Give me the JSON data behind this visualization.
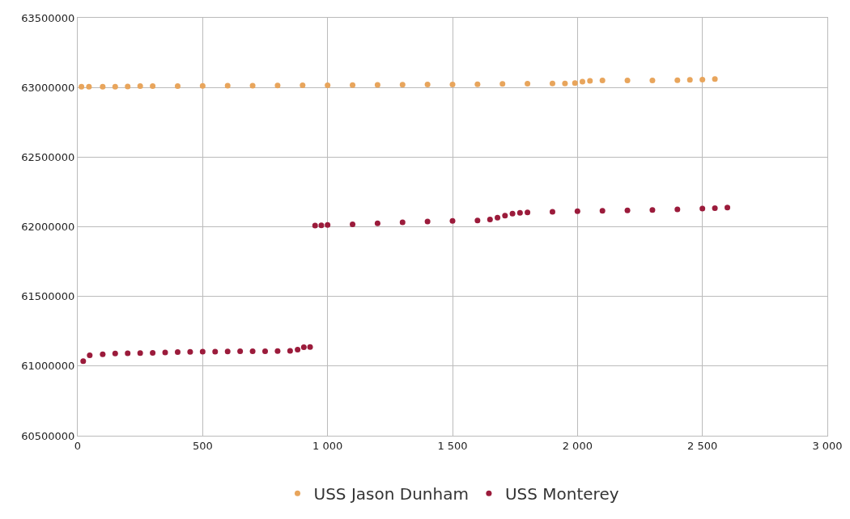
{
  "chart_data": {
    "type": "scatter",
    "xlim": [
      0,
      3000
    ],
    "ylim": [
      60500000,
      63500000
    ],
    "xticks": [
      0,
      500,
      {
        "value": 1000,
        "label": "1 000"
      },
      {
        "value": 1500,
        "label": "1 500"
      },
      {
        "value": 2000,
        "label": "2 000"
      },
      {
        "value": 2500,
        "label": "2 500"
      },
      {
        "value": 3000,
        "label": "3 000"
      }
    ],
    "yticks": [
      60500000,
      61000000,
      61500000,
      62000000,
      62500000,
      63000000,
      63500000
    ],
    "grid": true,
    "legend": "bottom",
    "marker": "circle",
    "series": [
      {
        "name": "USS Jason Dunham",
        "color": "#e8a55c",
        "x": [
          15,
          45,
          100,
          150,
          200,
          250,
          300,
          400,
          500,
          600,
          700,
          800,
          900,
          1000,
          1100,
          1200,
          1300,
          1400,
          1500,
          1600,
          1700,
          1800,
          1900,
          1950,
          1990,
          2020,
          2050,
          2100,
          2200,
          2300,
          2400,
          2450,
          2500,
          2550
        ],
        "values": [
          63005000,
          63005000,
          63005000,
          63006000,
          63007000,
          63009000,
          63010000,
          63010000,
          63011000,
          63012000,
          63013000,
          63014000,
          63015000,
          63016000,
          63017000,
          63019000,
          63020000,
          63021000,
          63022000,
          63023000,
          63025000,
          63027000,
          63028000,
          63029000,
          63032000,
          63042000,
          63048000,
          63050000,
          63050000,
          63050000,
          63052000,
          63055000,
          63056000,
          63060000
        ]
      },
      {
        "name": "USS Monterey",
        "color": "#9b1b3b",
        "x": [
          22,
          48,
          100,
          150,
          200,
          250,
          300,
          350,
          400,
          450,
          500,
          550,
          600,
          650,
          700,
          750,
          800,
          850,
          880,
          905,
          930,
          950,
          975,
          1000,
          1100,
          1200,
          1300,
          1400,
          1500,
          1600,
          1650,
          1680,
          1710,
          1740,
          1770,
          1800,
          1900,
          2000,
          2100,
          2200,
          2300,
          2400,
          2500,
          2550,
          2600
        ],
        "values": [
          61035000,
          61078000,
          61085000,
          61090000,
          61092000,
          61094000,
          61095000,
          61097000,
          61100000,
          61102000,
          61103000,
          61104000,
          61105000,
          61106000,
          61107000,
          61107000,
          61108000,
          61110000,
          61118000,
          61135000,
          61137000,
          62008000,
          62010000,
          62013000,
          62018000,
          62025000,
          62032000,
          62038000,
          62042000,
          62045000,
          62052000,
          62065000,
          62080000,
          62095000,
          62100000,
          62103000,
          62107000,
          62112000,
          62115000,
          62118000,
          62120000,
          62125000,
          62130000,
          62133000,
          62138000
        ]
      }
    ]
  }
}
